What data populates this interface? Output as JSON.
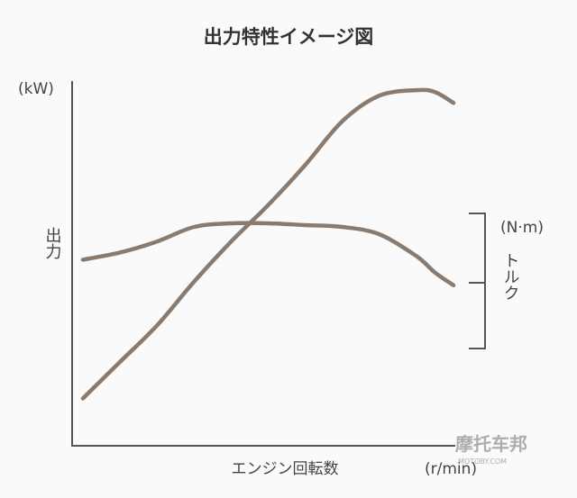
{
  "chart_data": {
    "type": "line",
    "title": "出力特性イメージ図",
    "xlabel": "エンジン回転数",
    "x_unit": "(r/min)",
    "ylabel_left": "出力",
    "y_unit_left": "(kW)",
    "ylabel_right": "トルク",
    "y_unit_right": "(N·m)",
    "x": [
      0,
      10,
      20,
      30,
      40,
      50,
      60,
      70,
      80,
      90,
      95,
      100
    ],
    "series": [
      {
        "role": "power",
        "values": [
          13,
          23,
          33,
          45,
          56,
          66,
          77,
          89,
          96,
          97.5,
          97,
          94
        ],
        "color": "#8b7b6e"
      },
      {
        "role": "torque",
        "values": [
          51,
          53,
          56,
          60,
          61,
          61,
          60.5,
          60,
          58,
          52,
          47.5,
          44
        ],
        "color": "#8b7b6e"
      }
    ],
    "xlim": [
      0,
      100
    ],
    "ylim": [
      0,
      100
    ],
    "grid": false,
    "ticks": "none"
  },
  "watermark": {
    "text": "摩托车邦",
    "small": "MOTOBY.COM"
  }
}
